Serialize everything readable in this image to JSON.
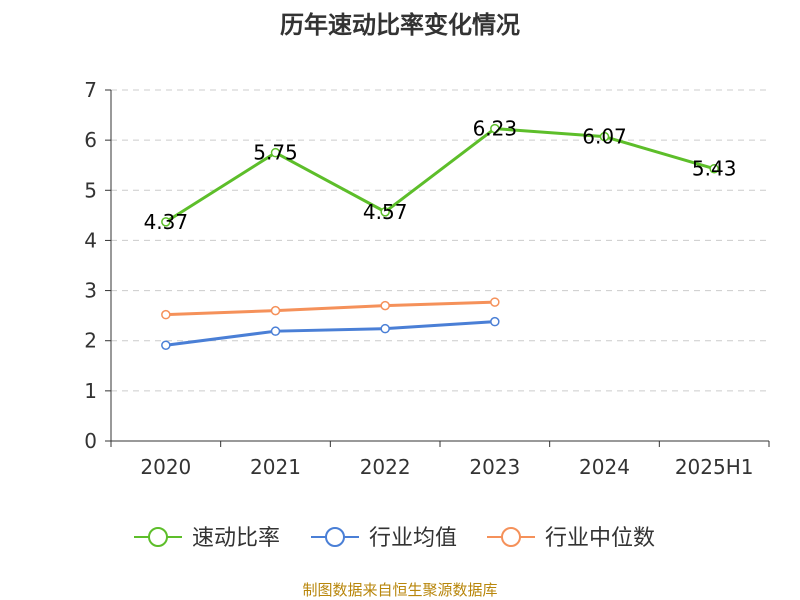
{
  "chart_data": {
    "type": "line",
    "title": "历年速动比率变化情况",
    "categories": [
      "2020",
      "2021",
      "2022",
      "2023",
      "2024",
      "2025H1"
    ],
    "ylim": [
      0,
      7
    ],
    "yticks": [
      "0",
      "1",
      "2",
      "3",
      "4",
      "5",
      "6",
      "7"
    ],
    "grid": "horizontal-dashed",
    "legend_position": "bottom",
    "series": [
      {
        "name": "速动比率",
        "color": "#5dbe2a",
        "values": [
          4.37,
          5.75,
          4.57,
          6.23,
          6.07,
          5.43
        ],
        "labels": [
          "4.37",
          "5.75",
          "4.57",
          "6.23",
          "6.07",
          "5.43"
        ]
      },
      {
        "name": "行业均值",
        "color": "#4a7fd6",
        "values": [
          1.91,
          2.19,
          2.24,
          2.38,
          null,
          null
        ]
      },
      {
        "name": "行业中位数",
        "color": "#f5915a",
        "values": [
          2.52,
          2.6,
          2.7,
          2.77,
          null,
          null
        ]
      }
    ]
  },
  "source": "制图数据来自恒生聚源数据库"
}
